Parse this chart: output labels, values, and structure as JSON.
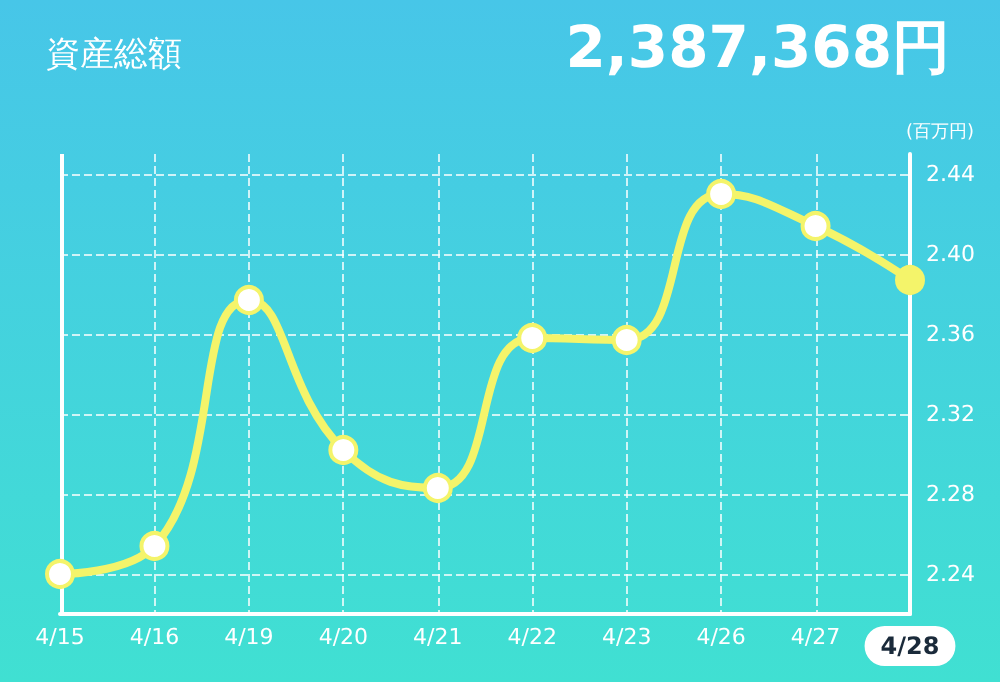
{
  "chart_data": {
    "type": "line",
    "title": "資産総額",
    "subtitle": "2,387,368円",
    "ylabel": "(百万円)",
    "categories": [
      "4/15",
      "4/16",
      "4/19",
      "4/20",
      "4/21",
      "4/22",
      "4/23",
      "4/26",
      "4/27",
      "4/28"
    ],
    "series": [
      {
        "color": "#f4f46a",
        "values": [
          2.24,
          2.254,
          2.377,
          2.302,
          2.283,
          2.358,
          2.357,
          2.43,
          2.414,
          2.387
        ]
      }
    ],
    "ylim": [
      2.22,
      2.45
    ],
    "yticks": [
      2.24,
      2.28,
      2.32,
      2.36,
      {
        "value": 2.4,
        "label": "2.40"
      },
      2.44
    ],
    "grid": true,
    "marker": "circle",
    "line_style": "solid"
  }
}
